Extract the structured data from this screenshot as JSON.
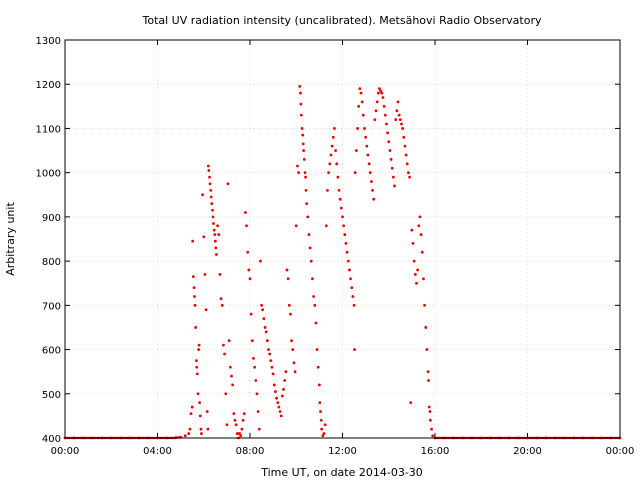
{
  "chart_data": {
    "type": "scatter",
    "title": "Total UV radiation intensity (uncalibrated). Metsähovi Radio Observatory",
    "xlabel": "Time UT, on date 2014-03-30",
    "ylabel": "Arbitrary unit",
    "xlim": [
      0,
      24
    ],
    "ylim": [
      400,
      1300
    ],
    "x_ticks": [
      {
        "value": 0,
        "label": "00:00"
      },
      {
        "value": 4,
        "label": "04:00"
      },
      {
        "value": 8,
        "label": "08:00"
      },
      {
        "value": 12,
        "label": "12:00"
      },
      {
        "value": 16,
        "label": "16:00"
      },
      {
        "value": 20,
        "label": "20:00"
      },
      {
        "value": 24,
        "label": "00:00"
      }
    ],
    "y_ticks": [
      {
        "value": 400,
        "label": "400"
      },
      {
        "value": 500,
        "label": "500"
      },
      {
        "value": 600,
        "label": "600"
      },
      {
        "value": 700,
        "label": "700"
      },
      {
        "value": 800,
        "label": "800"
      },
      {
        "value": 900,
        "label": "900"
      },
      {
        "value": 1000,
        "label": "1000"
      },
      {
        "value": 1100,
        "label": "1100"
      },
      {
        "value": 1200,
        "label": "1200"
      },
      {
        "value": 1300,
        "label": "1300"
      }
    ],
    "grid": true,
    "legend": "none",
    "marker_color": "#ee0000",
    "series": [
      {
        "points": [
          [
            0.0,
            400
          ],
          [
            0.4,
            400
          ],
          [
            0.8,
            400
          ],
          [
            1.2,
            400
          ],
          [
            1.6,
            400
          ],
          [
            2.0,
            400
          ],
          [
            2.4,
            400
          ],
          [
            2.8,
            400
          ],
          [
            3.2,
            400
          ],
          [
            3.6,
            400
          ],
          [
            4.0,
            400
          ],
          [
            4.4,
            400
          ],
          [
            4.8,
            401
          ],
          [
            5.0,
            402
          ],
          [
            5.2,
            405
          ],
          [
            5.35,
            410
          ],
          [
            5.4,
            420
          ],
          [
            5.45,
            455
          ],
          [
            5.5,
            470
          ],
          [
            5.52,
            845
          ],
          [
            5.55,
            765
          ],
          [
            5.58,
            740
          ],
          [
            5.6,
            720
          ],
          [
            5.62,
            700
          ],
          [
            5.65,
            650
          ],
          [
            5.68,
            575
          ],
          [
            5.7,
            560
          ],
          [
            5.72,
            545
          ],
          [
            5.75,
            500
          ],
          [
            5.78,
            600
          ],
          [
            5.8,
            610
          ],
          [
            5.82,
            480
          ],
          [
            5.85,
            450
          ],
          [
            5.88,
            420
          ],
          [
            5.9,
            410
          ],
          [
            5.95,
            950
          ],
          [
            6.0,
            855
          ],
          [
            6.05,
            770
          ],
          [
            6.1,
            690
          ],
          [
            6.15,
            460
          ],
          [
            6.18,
            420
          ],
          [
            6.2,
            1015
          ],
          [
            6.22,
            1005
          ],
          [
            6.25,
            990
          ],
          [
            6.27,
            975
          ],
          [
            6.3,
            960
          ],
          [
            6.32,
            945
          ],
          [
            6.35,
            930
          ],
          [
            6.38,
            915
          ],
          [
            6.4,
            900
          ],
          [
            6.42,
            885
          ],
          [
            6.45,
            870
          ],
          [
            6.48,
            860
          ],
          [
            6.5,
            845
          ],
          [
            6.52,
            830
          ],
          [
            6.55,
            815
          ],
          [
            6.6,
            880
          ],
          [
            6.65,
            860
          ],
          [
            6.7,
            770
          ],
          [
            6.75,
            715
          ],
          [
            6.8,
            700
          ],
          [
            6.85,
            610
          ],
          [
            6.9,
            590
          ],
          [
            6.95,
            500
          ],
          [
            7.0,
            430
          ],
          [
            7.05,
            975
          ],
          [
            7.1,
            620
          ],
          [
            7.15,
            560
          ],
          [
            7.2,
            540
          ],
          [
            7.25,
            520
          ],
          [
            7.3,
            455
          ],
          [
            7.35,
            440
          ],
          [
            7.4,
            430
          ],
          [
            7.45,
            410
          ],
          [
            7.5,
            400
          ],
          [
            7.55,
            410
          ],
          [
            7.6,
            405
          ],
          [
            7.65,
            420
          ],
          [
            7.7,
            440
          ],
          [
            7.75,
            455
          ],
          [
            7.8,
            910
          ],
          [
            7.85,
            880
          ],
          [
            7.9,
            820
          ],
          [
            7.95,
            780
          ],
          [
            8.0,
            760
          ],
          [
            8.05,
            680
          ],
          [
            8.1,
            620
          ],
          [
            8.15,
            580
          ],
          [
            8.2,
            560
          ],
          [
            8.25,
            530
          ],
          [
            8.3,
            500
          ],
          [
            8.35,
            460
          ],
          [
            8.4,
            420
          ],
          [
            8.45,
            800
          ],
          [
            8.5,
            700
          ],
          [
            8.55,
            690
          ],
          [
            8.6,
            670
          ],
          [
            8.65,
            650
          ],
          [
            8.7,
            640
          ],
          [
            8.75,
            620
          ],
          [
            8.8,
            600
          ],
          [
            8.85,
            590
          ],
          [
            8.9,
            575
          ],
          [
            8.95,
            560
          ],
          [
            9.0,
            545
          ],
          [
            9.05,
            520
          ],
          [
            9.1,
            505
          ],
          [
            9.15,
            490
          ],
          [
            9.2,
            480
          ],
          [
            9.25,
            470
          ],
          [
            9.3,
            460
          ],
          [
            9.35,
            450
          ],
          [
            9.4,
            495
          ],
          [
            9.45,
            510
          ],
          [
            9.5,
            530
          ],
          [
            9.55,
            550
          ],
          [
            9.6,
            780
          ],
          [
            9.65,
            760
          ],
          [
            9.7,
            700
          ],
          [
            9.75,
            680
          ],
          [
            9.8,
            620
          ],
          [
            9.85,
            600
          ],
          [
            9.9,
            570
          ],
          [
            9.95,
            550
          ],
          [
            10.0,
            880
          ],
          [
            10.05,
            1015
          ],
          [
            10.1,
            1000
          ],
          [
            10.15,
            1195
          ],
          [
            10.18,
            1180
          ],
          [
            10.2,
            1155
          ],
          [
            10.22,
            1130
          ],
          [
            10.25,
            1100
          ],
          [
            10.28,
            1085
          ],
          [
            10.3,
            1065
          ],
          [
            10.32,
            1050
          ],
          [
            10.35,
            1030
          ],
          [
            10.38,
            1000
          ],
          [
            10.4,
            990
          ],
          [
            10.42,
            960
          ],
          [
            10.45,
            930
          ],
          [
            10.5,
            900
          ],
          [
            10.55,
            860
          ],
          [
            10.6,
            830
          ],
          [
            10.65,
            800
          ],
          [
            10.7,
            760
          ],
          [
            10.75,
            720
          ],
          [
            10.8,
            700
          ],
          [
            10.85,
            660
          ],
          [
            10.9,
            600
          ],
          [
            10.95,
            560
          ],
          [
            11.0,
            520
          ],
          [
            11.02,
            480
          ],
          [
            11.05,
            460
          ],
          [
            11.08,
            440
          ],
          [
            11.1,
            420
          ],
          [
            11.15,
            405
          ],
          [
            11.2,
            410
          ],
          [
            11.25,
            430
          ],
          [
            11.3,
            880
          ],
          [
            11.35,
            960
          ],
          [
            11.4,
            1000
          ],
          [
            11.45,
            1020
          ],
          [
            11.5,
            1040
          ],
          [
            11.55,
            1060
          ],
          [
            11.6,
            1080
          ],
          [
            11.65,
            1100
          ],
          [
            11.7,
            1050
          ],
          [
            11.75,
            1020
          ],
          [
            11.8,
            990
          ],
          [
            11.85,
            960
          ],
          [
            11.9,
            940
          ],
          [
            11.95,
            920
          ],
          [
            12.0,
            900
          ],
          [
            12.05,
            880
          ],
          [
            12.1,
            860
          ],
          [
            12.15,
            840
          ],
          [
            12.2,
            820
          ],
          [
            12.25,
            800
          ],
          [
            12.3,
            780
          ],
          [
            12.35,
            760
          ],
          [
            12.4,
            740
          ],
          [
            12.45,
            720
          ],
          [
            12.5,
            700
          ],
          [
            12.52,
            600
          ],
          [
            12.55,
            1000
          ],
          [
            12.6,
            1050
          ],
          [
            12.65,
            1100
          ],
          [
            12.7,
            1150
          ],
          [
            12.75,
            1190
          ],
          [
            12.8,
            1180
          ],
          [
            12.85,
            1160
          ],
          [
            12.9,
            1130
          ],
          [
            12.95,
            1100
          ],
          [
            13.0,
            1080
          ],
          [
            13.05,
            1060
          ],
          [
            13.1,
            1040
          ],
          [
            13.15,
            1020
          ],
          [
            13.2,
            1000
          ],
          [
            13.25,
            980
          ],
          [
            13.3,
            960
          ],
          [
            13.35,
            940
          ],
          [
            13.4,
            1120
          ],
          [
            13.45,
            1140
          ],
          [
            13.5,
            1160
          ],
          [
            13.55,
            1180
          ],
          [
            13.6,
            1190
          ],
          [
            13.65,
            1185
          ],
          [
            13.7,
            1180
          ],
          [
            13.75,
            1170
          ],
          [
            13.8,
            1150
          ],
          [
            13.85,
            1130
          ],
          [
            13.9,
            1110
          ],
          [
            13.95,
            1090
          ],
          [
            14.0,
            1070
          ],
          [
            14.05,
            1050
          ],
          [
            14.1,
            1030
          ],
          [
            14.15,
            1010
          ],
          [
            14.2,
            990
          ],
          [
            14.25,
            970
          ],
          [
            14.3,
            1120
          ],
          [
            14.35,
            1140
          ],
          [
            14.4,
            1160
          ],
          [
            14.45,
            1130
          ],
          [
            14.5,
            1120
          ],
          [
            14.55,
            1110
          ],
          [
            14.6,
            1100
          ],
          [
            14.65,
            1080
          ],
          [
            14.7,
            1060
          ],
          [
            14.75,
            1040
          ],
          [
            14.8,
            1020
          ],
          [
            14.85,
            1000
          ],
          [
            14.9,
            990
          ],
          [
            14.95,
            480
          ],
          [
            15.0,
            870
          ],
          [
            15.05,
            840
          ],
          [
            15.1,
            800
          ],
          [
            15.15,
            770
          ],
          [
            15.2,
            750
          ],
          [
            15.25,
            780
          ],
          [
            15.3,
            880
          ],
          [
            15.35,
            900
          ],
          [
            15.4,
            860
          ],
          [
            15.45,
            820
          ],
          [
            15.5,
            760
          ],
          [
            15.55,
            700
          ],
          [
            15.6,
            650
          ],
          [
            15.65,
            600
          ],
          [
            15.7,
            550
          ],
          [
            15.72,
            530
          ],
          [
            15.75,
            470
          ],
          [
            15.78,
            460
          ],
          [
            15.8,
            440
          ],
          [
            15.85,
            420
          ],
          [
            15.9,
            405
          ],
          [
            16.0,
            400
          ],
          [
            16.4,
            400
          ],
          [
            16.8,
            400
          ],
          [
            17.2,
            400
          ],
          [
            17.6,
            400
          ],
          [
            18.0,
            400
          ],
          [
            18.4,
            400
          ],
          [
            18.8,
            400
          ],
          [
            19.2,
            400
          ],
          [
            19.6,
            400
          ],
          [
            20.0,
            400
          ],
          [
            20.4,
            400
          ],
          [
            20.8,
            400
          ],
          [
            21.2,
            400
          ],
          [
            21.6,
            400
          ],
          [
            22.0,
            400
          ],
          [
            22.4,
            400
          ],
          [
            22.8,
            400
          ],
          [
            23.2,
            400
          ],
          [
            23.6,
            400
          ],
          [
            24.0,
            400
          ]
        ]
      }
    ]
  }
}
